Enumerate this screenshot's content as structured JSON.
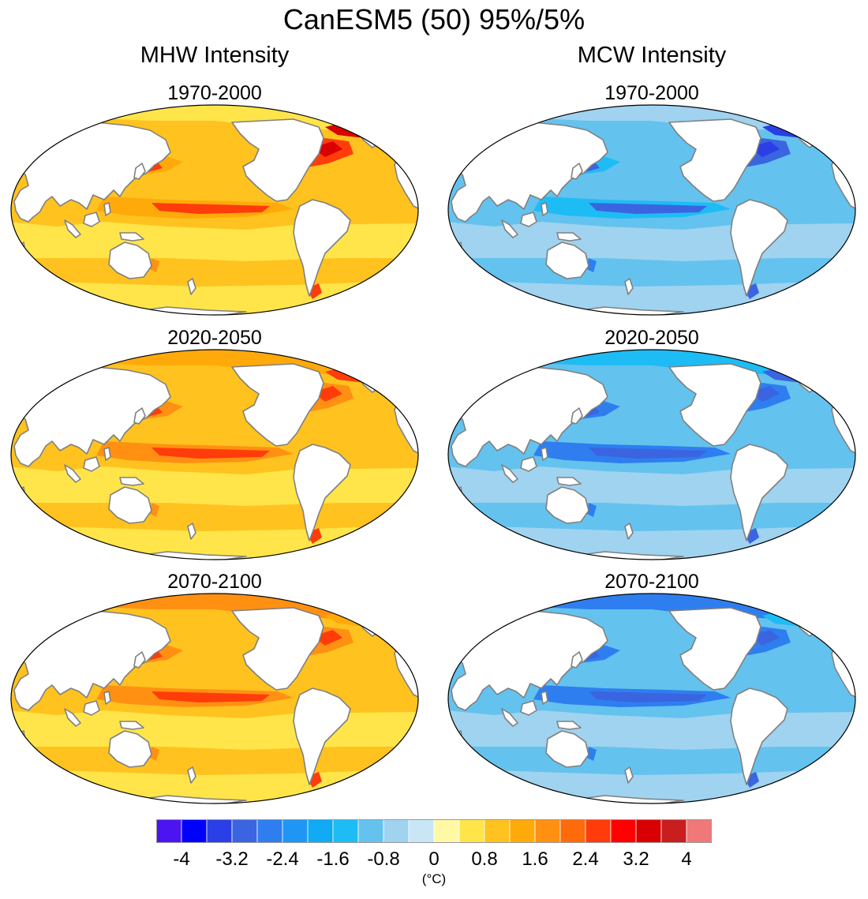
{
  "title": "CanESM5 (50) 95%/5%",
  "columns": [
    {
      "id": "mhw",
      "title": "MHW Intensity",
      "scheme": "warm"
    },
    {
      "id": "mcw",
      "title": "MCW Intensity",
      "scheme": "cool"
    }
  ],
  "periods": [
    "1970-2000",
    "2020-2050",
    "2070-2100"
  ],
  "colorbar": {
    "colors": [
      "#4b14f0",
      "#0000ff",
      "#2a3fe6",
      "#3a64e0",
      "#2e7ef0",
      "#1e96f5",
      "#10aaf5",
      "#1ebcf5",
      "#64c2ee",
      "#9fd3f0",
      "#c8e6f6",
      "#fff9a6",
      "#ffe54a",
      "#ffc21e",
      "#ffaa0a",
      "#ff9012",
      "#ff6a0a",
      "#ff3c0a",
      "#ff0000",
      "#d80000",
      "#c81e1e",
      "#f07878"
    ],
    "tick_labels": [
      "-4",
      "-3.2",
      "-2.4",
      "-1.6",
      "-0.8",
      "0",
      "0.8",
      "1.6",
      "2.4",
      "3.2",
      "4"
    ],
    "unit": "(°C)"
  },
  "palettes": {
    "warm": {
      "base": "#ffc21e",
      "low": "#ffe54a",
      "mid": "#ffaa0a",
      "high": "#ff9012",
      "hot": "#ff3c0a",
      "max": "#d80000"
    },
    "cool": {
      "base": "#64c2ee",
      "low": "#9fd3f0",
      "mid": "#1ebcf5",
      "high": "#2e7ef0",
      "hot": "#3a64e0",
      "max": "#2a3fe6"
    }
  },
  "land_color": "#ffffff",
  "coast_color": "#808080"
}
